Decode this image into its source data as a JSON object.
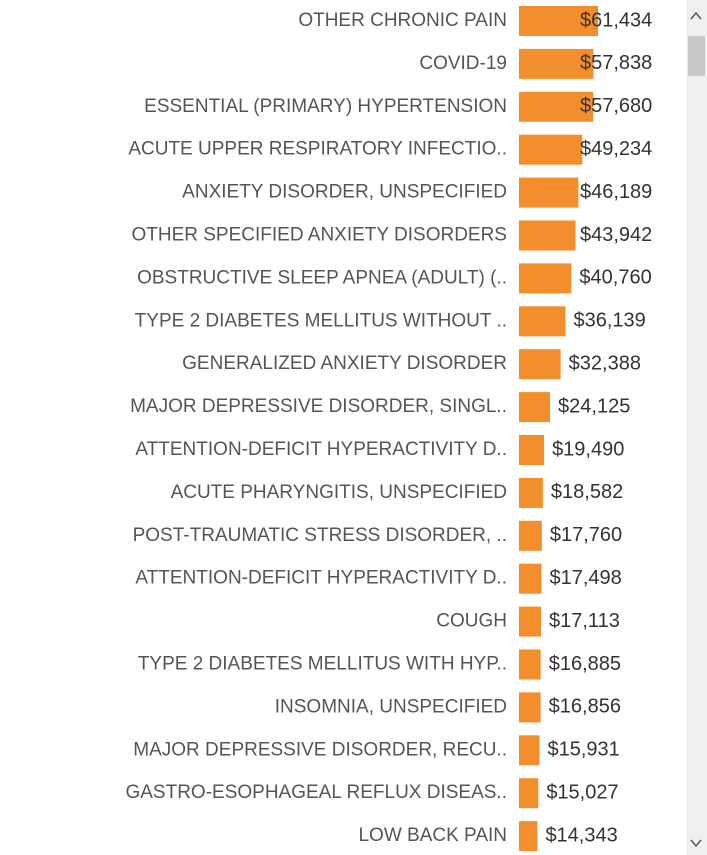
{
  "chart_data": {
    "type": "hbar",
    "color": "#f28e2b",
    "categories": [
      "OTHER CHRONIC PAIN",
      "COVID-19",
      "ESSENTIAL (PRIMARY) HYPERTENSION",
      "ACUTE UPPER RESPIRATORY INFECTIO..",
      "ANXIETY DISORDER, UNSPECIFIED",
      "OTHER SPECIFIED ANXIETY DISORDERS",
      "OBSTRUCTIVE SLEEP APNEA (ADULT) (..",
      "TYPE 2 DIABETES MELLITUS WITHOUT ..",
      "GENERALIZED ANXIETY DISORDER",
      "MAJOR DEPRESSIVE DISORDER, SINGL..",
      "ATTENTION-DEFICIT HYPERACTIVITY D..",
      "ACUTE PHARYNGITIS, UNSPECIFIED",
      "POST-TRAUMATIC STRESS DISORDER, ..",
      "ATTENTION-DEFICIT HYPERACTIVITY D..",
      "COUGH",
      "TYPE 2 DIABETES MELLITUS WITH HYP..",
      "INSOMNIA, UNSPECIFIED",
      "MAJOR DEPRESSIVE DISORDER, RECU..",
      "GASTRO-ESOPHAGEAL REFLUX DISEAS..",
      "LOW BACK PAIN"
    ],
    "values": [
      61434,
      57838,
      57680,
      49234,
      46189,
      43942,
      40760,
      36139,
      32388,
      24125,
      19490,
      18582,
      17760,
      17498,
      17113,
      16885,
      16856,
      15931,
      15027,
      14343
    ],
    "value_labels": [
      "$61,434",
      "$57,838",
      "$57,680",
      "$49,234",
      "$46,189",
      "$43,942",
      "$40,760",
      "$36,139",
      "$32,388",
      "$24,125",
      "$19,490",
      "$18,582",
      "$17,760",
      "$17,498",
      "$17,113",
      "$16,885",
      "$16,856",
      "$15,931",
      "$15,027",
      "$14,343"
    ]
  }
}
